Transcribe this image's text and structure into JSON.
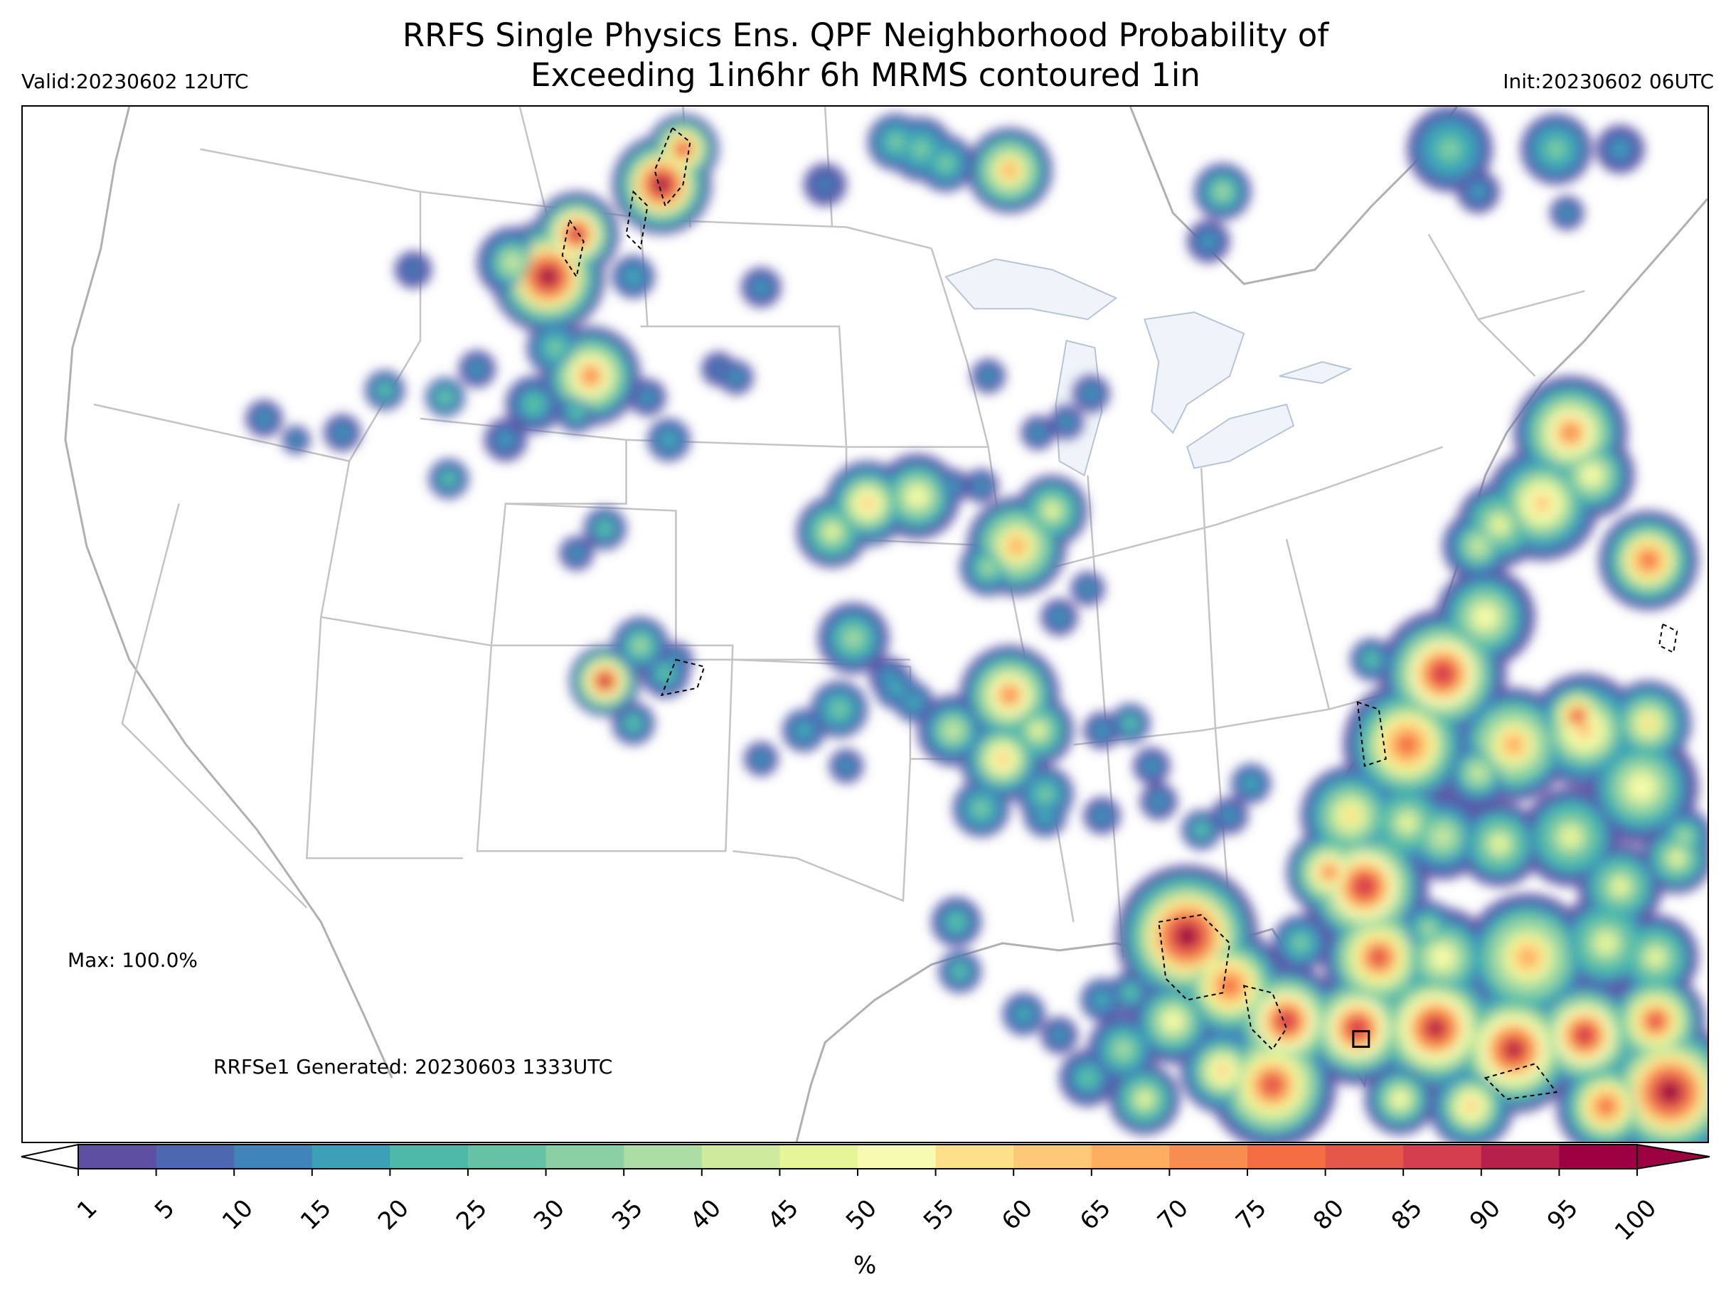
{
  "header": {
    "title_line1": "RRFS Single Physics Ens. QPF Neighborhood Probability of",
    "title_line2": "Exceeding 1in6hr 6h MRMS contoured 1in",
    "valid": "Valid:20230602 12UTC",
    "init": "Init:20230602 06UTC"
  },
  "annotations": {
    "max": "Max: 100.0%",
    "generated": "RRFSe1 Generated: 20230603 1333UTC"
  },
  "colorbar": {
    "levels": [
      "1",
      "5",
      "10",
      "15",
      "20",
      "25",
      "30",
      "35",
      "40",
      "45",
      "50",
      "55",
      "60",
      "65",
      "70",
      "75",
      "80",
      "85",
      "90",
      "95",
      "100"
    ],
    "colors": [
      "#5e4fa2",
      "#4d68b0",
      "#3f84bb",
      "#3da0b8",
      "#4eb9a9",
      "#66c2a5",
      "#8ad0a4",
      "#abdda4",
      "#cdea9d",
      "#e6f598",
      "#f7fbb2",
      "#fee08b",
      "#fdc877",
      "#fdae61",
      "#f88d52",
      "#f46d43",
      "#e55749",
      "#d53e4f",
      "#b6204a",
      "#9e0142"
    ],
    "unit": "%"
  },
  "map": {
    "region": "CONUS",
    "state_line_color": "#c4c4c4",
    "coast_color": "#b0b0b0",
    "lake_fill": "#f0f4fa"
  }
}
